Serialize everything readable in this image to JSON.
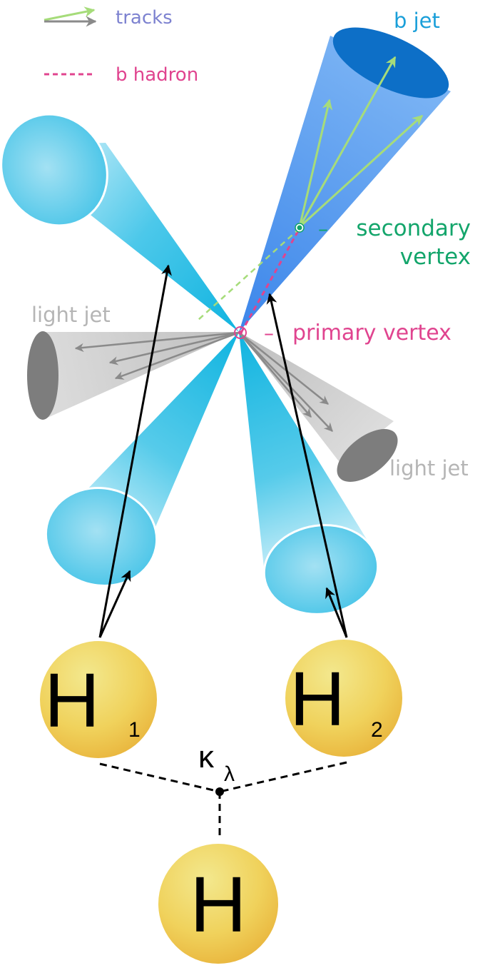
{
  "legend": {
    "tracks_label": "tracks",
    "b_hadron_label": "b hadron"
  },
  "labels": {
    "b_jet": "b jet",
    "secondary_vertex_line1": "secondary",
    "secondary_vertex_line2": "vertex",
    "primary_vertex": "primary vertex",
    "light_jet_left": "light jet",
    "light_jet_right": "light jet",
    "dash": "–"
  },
  "higgs": {
    "h1_letter": "H",
    "h1_sub": "1",
    "h2_letter": "H",
    "h2_sub": "2",
    "h_letter": "H"
  },
  "coupling": {
    "kappa": "κ",
    "lambda": "λ"
  },
  "colors": {
    "track_green": "#a6dc7a",
    "track_gray": "#8a8a8a",
    "b_hadron_pink": "#e0448f",
    "legend_tracks_text": "#7d82d0",
    "b_jet_text": "#1a9fd9",
    "vertex_text": "#13a56b",
    "primary_text": "#e0448f",
    "light_jet_text": "#b5b5b5",
    "cyan_cone": "#2cc0e6",
    "blue_cone": "#5a9cf0",
    "gray_cone": "#d2d2d2",
    "higgs_gold": "#f0c94e"
  }
}
